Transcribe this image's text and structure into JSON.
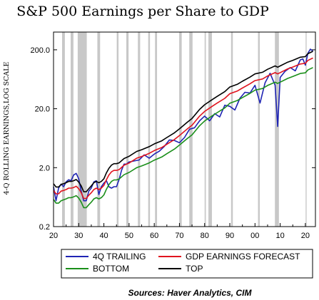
{
  "chart_data": {
    "type": "line",
    "title": "S&P 500 Earnings per Share to GDP",
    "ylabel": "4-Q ROLLING EARNINGS,LOG SCALE",
    "xlabel": "",
    "source": "Sources:  Haver Analytics, CIM",
    "y_scale": "log",
    "ylim": [
      0.2,
      400
    ],
    "xlim": [
      1920,
      2024
    ],
    "x_tick_labels": [
      "20",
      "30",
      "40",
      "50",
      "60",
      "70",
      "80",
      "90",
      "00",
      "10",
      "20"
    ],
    "x_ticks": [
      1920,
      1930,
      1940,
      1950,
      1960,
      1970,
      1980,
      1990,
      2000,
      2010,
      2020
    ],
    "y_tick_labels": [
      "0.2",
      "2.0",
      "20.0",
      "200.0"
    ],
    "y_ticks": [
      0.2,
      2,
      20,
      200
    ],
    "recessions": [
      [
        1923.4,
        1924.5
      ],
      [
        1926.8,
        1927.9
      ],
      [
        1929.6,
        1933.2
      ],
      [
        1937.4,
        1938.5
      ],
      [
        1945.1,
        1945.8
      ],
      [
        1948.9,
        1949.8
      ],
      [
        1953.5,
        1954.4
      ],
      [
        1957.6,
        1958.3
      ],
      [
        1960.3,
        1961.1
      ],
      [
        1969.9,
        1970.9
      ],
      [
        1973.9,
        1975.2
      ],
      [
        1980.0,
        1980.5
      ],
      [
        1981.5,
        1982.9
      ],
      [
        1990.5,
        1991.2
      ],
      [
        2001.2,
        2001.9
      ],
      [
        2007.9,
        2009.5
      ],
      [
        2020.1,
        2020.5
      ]
    ],
    "legend": [
      {
        "label": "4Q TRAILING",
        "color": "#1f24b4"
      },
      {
        "label": "GDP EARNINGS FORECAST",
        "color": "#e0141e"
      },
      {
        "label": "BOTTOM",
        "color": "#1a8f1a"
      },
      {
        "label": "TOP",
        "color": "#000000"
      }
    ],
    "series": [
      {
        "name": "4Q TRAILING",
        "color": "#1f24b4",
        "x": [
          1920,
          1921,
          1922,
          1923,
          1924,
          1925,
          1926,
          1927,
          1928,
          1929,
          1930,
          1931,
          1932,
          1933,
          1934,
          1935,
          1936,
          1937,
          1938,
          1939,
          1940,
          1941,
          1942,
          1943,
          1944,
          1945,
          1946,
          1947,
          1948,
          1949,
          1950,
          1952,
          1954,
          1956,
          1958,
          1960,
          1962,
          1964,
          1966,
          1968,
          1970,
          1972,
          1974,
          1976,
          1978,
          1980,
          1982,
          1984,
          1986,
          1988,
          1990,
          1992,
          1994,
          1996,
          1998,
          2000,
          2002,
          2004,
          2006,
          2008,
          2009,
          2010,
          2012,
          2014,
          2016,
          2018,
          2019,
          2020,
          2021,
          2022,
          2023
        ],
        "y": [
          0.95,
          0.55,
          0.9,
          1.05,
          0.95,
          1.15,
          1.25,
          1.2,
          1.5,
          1.6,
          1.3,
          0.8,
          0.55,
          0.55,
          0.8,
          0.9,
          1.15,
          1.2,
          0.7,
          0.95,
          1.1,
          1.2,
          0.95,
          0.9,
          0.95,
          0.95,
          1.25,
          1.8,
          2.3,
          2.3,
          2.5,
          2.6,
          2.7,
          3.3,
          2.9,
          3.4,
          3.8,
          4.6,
          5.9,
          5.8,
          5.3,
          6.5,
          9.0,
          9.5,
          12.5,
          15.0,
          12.5,
          16.5,
          14.5,
          23.0,
          22.0,
          19.0,
          30.0,
          38.0,
          37.0,
          50.0,
          25.0,
          55.0,
          80.0,
          50.0,
          10.0,
          68.0,
          87.0,
          100.0,
          88.0,
          135.0,
          140.0,
          110.0,
          175.0,
          205.0,
          190.0
        ]
      },
      {
        "name": "GDP EARNINGS FORECAST",
        "color": "#e0141e",
        "x": [
          1920,
          1921,
          1922,
          1923,
          1924,
          1925,
          1926,
          1927,
          1928,
          1929,
          1930,
          1931,
          1932,
          1933,
          1934,
          1935,
          1936,
          1937,
          1938,
          1939,
          1940,
          1941,
          1942,
          1943,
          1944,
          1945,
          1946,
          1948,
          1950,
          1953,
          1955,
          1958,
          1960,
          1963,
          1965,
          1968,
          1970,
          1973,
          1975,
          1978,
          1980,
          1983,
          1985,
          1988,
          1990,
          1993,
          1995,
          1998,
          2000,
          2003,
          2005,
          2008,
          2009,
          2010,
          2013,
          2015,
          2018,
          2020,
          2021,
          2023
        ],
        "y": [
          0.82,
          0.72,
          0.72,
          0.8,
          0.82,
          0.85,
          0.9,
          0.9,
          0.92,
          0.97,
          0.88,
          0.75,
          0.6,
          0.6,
          0.68,
          0.75,
          0.85,
          0.9,
          0.85,
          0.9,
          1.0,
          1.25,
          1.5,
          1.7,
          1.8,
          1.8,
          1.85,
          2.2,
          2.4,
          2.9,
          3.1,
          3.5,
          3.9,
          4.4,
          5.0,
          6.0,
          7.0,
          9.0,
          10.5,
          15.0,
          18.0,
          22.0,
          25.0,
          30.0,
          36.0,
          40.0,
          45.0,
          53.0,
          60.0,
          64.0,
          72.0,
          82.0,
          78.0,
          82.0,
          95.0,
          102.0,
          115.0,
          118.0,
          132.0,
          145.0
        ]
      },
      {
        "name": "BOTTOM",
        "color": "#1a8f1a",
        "x": [
          1920,
          1921,
          1922,
          1923,
          1924,
          1925,
          1926,
          1927,
          1928,
          1929,
          1930,
          1931,
          1932,
          1933,
          1934,
          1935,
          1936,
          1937,
          1938,
          1939,
          1940,
          1941,
          1942,
          1943,
          1944,
          1945,
          1946,
          1948,
          1950,
          1953,
          1955,
          1958,
          1960,
          1963,
          1965,
          1968,
          1970,
          1973,
          1975,
          1978,
          1980,
          1983,
          1985,
          1988,
          1990,
          1993,
          1995,
          1998,
          2000,
          2003,
          2005,
          2008,
          2009,
          2010,
          2013,
          2015,
          2018,
          2020,
          2021,
          2023
        ],
        "y": [
          0.58,
          0.5,
          0.5,
          0.55,
          0.57,
          0.59,
          0.62,
          0.62,
          0.64,
          0.67,
          0.61,
          0.52,
          0.42,
          0.42,
          0.47,
          0.52,
          0.59,
          0.62,
          0.59,
          0.62,
          0.69,
          0.86,
          1.03,
          1.17,
          1.24,
          1.24,
          1.28,
          1.52,
          1.66,
          2.0,
          2.14,
          2.41,
          2.69,
          3.04,
          3.45,
          4.14,
          4.83,
          6.2,
          7.2,
          10.3,
          12.4,
          15.2,
          17.2,
          20.7,
          24.8,
          27.6,
          31.0,
          36.5,
          41.4,
          44.1,
          49.7,
          56.5,
          53.8,
          56.5,
          65.5,
          70.3,
          79.3,
          81.4,
          91.0,
          100.0
        ]
      },
      {
        "name": "TOP",
        "color": "#000000",
        "x": [
          1920,
          1921,
          1922,
          1923,
          1924,
          1925,
          1926,
          1927,
          1928,
          1929,
          1930,
          1931,
          1932,
          1933,
          1934,
          1935,
          1936,
          1937,
          1938,
          1939,
          1940,
          1941,
          1942,
          1943,
          1944,
          1945,
          1946,
          1948,
          1950,
          1953,
          1955,
          1958,
          1960,
          1963,
          1965,
          1968,
          1970,
          1973,
          1975,
          1978,
          1980,
          1983,
          1985,
          1988,
          1990,
          1993,
          1995,
          1998,
          2000,
          2003,
          2005,
          2008,
          2009,
          2010,
          2013,
          2015,
          2018,
          2020,
          2021,
          2023
        ],
        "y": [
          1.07,
          0.94,
          0.94,
          1.04,
          1.07,
          1.11,
          1.17,
          1.17,
          1.2,
          1.26,
          1.14,
          0.98,
          0.78,
          0.78,
          0.88,
          0.98,
          1.11,
          1.17,
          1.11,
          1.17,
          1.3,
          1.63,
          1.95,
          2.21,
          2.34,
          2.34,
          2.41,
          2.86,
          3.12,
          3.77,
          4.03,
          4.55,
          5.07,
          5.72,
          6.5,
          7.8,
          9.1,
          11.7,
          13.7,
          19.5,
          23.4,
          28.6,
          32.5,
          39.0,
          46.8,
          52.0,
          58.5,
          68.9,
          78.0,
          83.2,
          93.6,
          106.6,
          101.4,
          106.6,
          123.5,
          132.6,
          149.5,
          153.4,
          171.6,
          188.5
        ]
      }
    ]
  }
}
